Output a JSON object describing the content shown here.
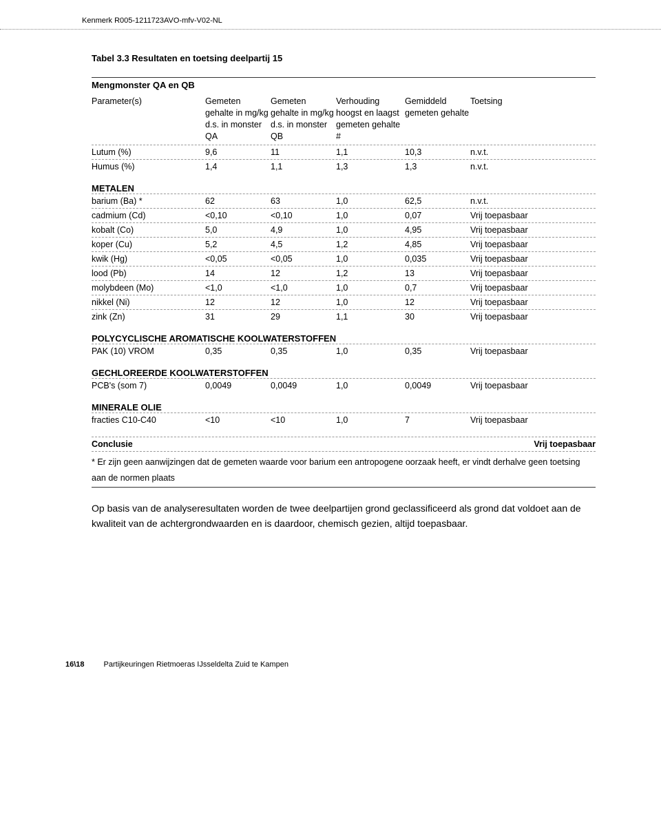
{
  "doc_id": "Kenmerk R005-1211723AVO-mfv-V02-NL",
  "table_title": "Tabel 3.3 Resultaten en toetsing deelpartij 15",
  "subheader1": "Mengmonster QA en QB",
  "header": {
    "param": "Parameter(s)",
    "qa": "Gemeten gehalte in mg/kg d.s. in monster QA",
    "qb": "Gemeten gehalte in mg/kg d.s. in monster QB",
    "ratio": "Verhouding hoogst en laagst gemeten gehalte #",
    "avg": "Gemiddeld gemeten gehalte",
    "test": "Toetsing"
  },
  "rows_top": [
    {
      "p": "Lutum (%)",
      "qa": "9,6",
      "qb": "11",
      "r": "1,1",
      "a": "10,3",
      "t": "n.v.t."
    },
    {
      "p": "Humus (%)",
      "qa": "1,4",
      "qb": "1,1",
      "r": "1,3",
      "a": "1,3",
      "t": "n.v.t."
    }
  ],
  "sections": [
    {
      "title": "METALEN",
      "rows": [
        {
          "p": "barium (Ba) *",
          "qa": "62",
          "qb": "63",
          "r": "1,0",
          "a": "62,5",
          "t": "n.v.t."
        },
        {
          "p": "cadmium (Cd)",
          "qa": "<0,10",
          "qb": "<0,10",
          "r": "1,0",
          "a": "0,07",
          "t": "Vrij toepasbaar"
        },
        {
          "p": "kobalt (Co)",
          "qa": "5,0",
          "qb": "4,9",
          "r": "1,0",
          "a": "4,95",
          "t": "Vrij toepasbaar"
        },
        {
          "p": "koper (Cu)",
          "qa": "5,2",
          "qb": "4,5",
          "r": "1,2",
          "a": "4,85",
          "t": "Vrij toepasbaar"
        },
        {
          "p": "kwik (Hg)",
          "qa": "<0,05",
          "qb": "<0,05",
          "r": "1,0",
          "a": "0,035",
          "t": "Vrij toepasbaar"
        },
        {
          "p": "lood (Pb)",
          "qa": "14",
          "qb": "12",
          "r": "1,2",
          "a": "13",
          "t": "Vrij toepasbaar"
        },
        {
          "p": "molybdeen (Mo)",
          "qa": "<1,0",
          "qb": "<1,0",
          "r": "1,0",
          "a": "0,7",
          "t": "Vrij toepasbaar"
        },
        {
          "p": "nikkel (Ni)",
          "qa": "12",
          "qb": "12",
          "r": "1,0",
          "a": "12",
          "t": "Vrij toepasbaar"
        },
        {
          "p": "zink (Zn)",
          "qa": "31",
          "qb": "29",
          "r": "1,1",
          "a": "30",
          "t": "Vrij toepasbaar"
        }
      ]
    },
    {
      "title": "POLYCYCLISCHE AROMATISCHE KOOLWATERSTOFFEN",
      "rows": [
        {
          "p": "PAK (10) VROM",
          "qa": "0,35",
          "qb": "0,35",
          "r": "1,0",
          "a": "0,35",
          "t": "Vrij toepasbaar"
        }
      ]
    },
    {
      "title": "GECHLOREERDE KOOLWATERSTOFFEN",
      "rows": [
        {
          "p": "PCB's (som 7)",
          "qa": "0,0049",
          "qb": "0,0049",
          "r": "1,0",
          "a": "0,0049",
          "t": "Vrij toepasbaar"
        }
      ]
    },
    {
      "title": "MINERALE OLIE",
      "rows": [
        {
          "p": "fracties C10-C40",
          "qa": "<10",
          "qb": "<10",
          "r": "1,0",
          "a": "7",
          "t": "Vrij toepasbaar"
        }
      ]
    }
  ],
  "conclusion_label": "Conclusie",
  "conclusion_value": "Vrij toepasbaar",
  "footnote": "* Er zijn geen aanwijzingen dat de gemeten waarde voor barium een antropogene oorzaak heeft, er vindt derhalve geen toetsing aan de normen plaats",
  "body_para": "Op basis van de analyseresultaten worden de twee deelpartijen grond geclassificeerd als grond dat voldoet aan de kwaliteit van de achtergrondwaarden en is daardoor, chemisch gezien, altijd toepasbaar.",
  "footer_page": "16\\18",
  "footer_text": "Partijkeuringen Rietmoeras IJsseldelta Zuid te Kampen"
}
